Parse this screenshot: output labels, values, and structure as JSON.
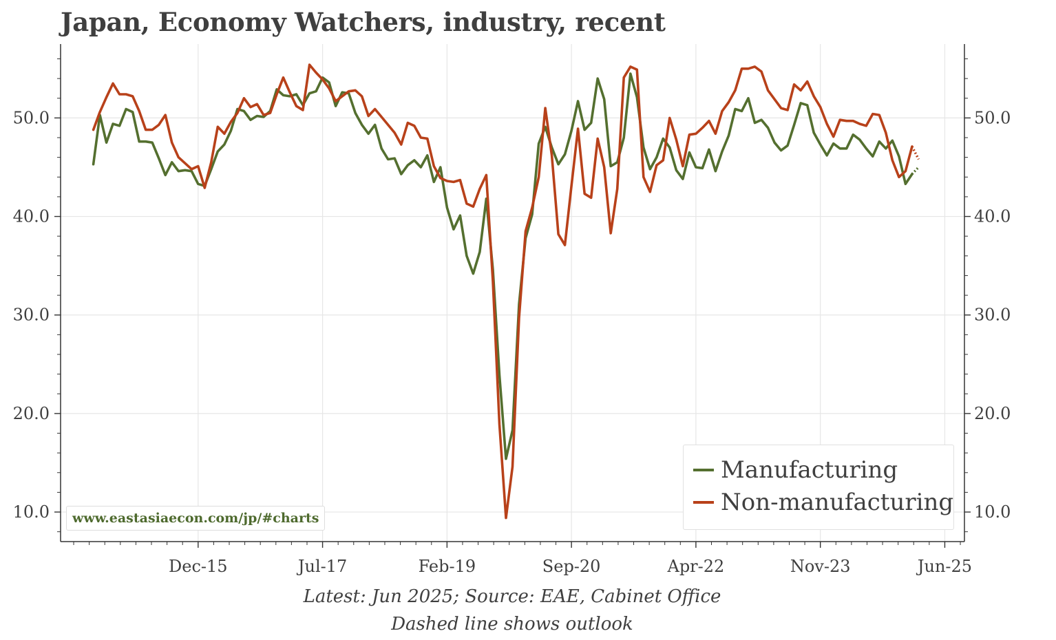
{
  "title": "Japan, Economy Watchers, industry, recent",
  "watermark": "www.eastasiaecon.com/jp/#charts",
  "footer": {
    "line1": "Latest: Jun 2025; Source: EAE, Cabinet Office",
    "line2": "Dashed line shows outlook"
  },
  "colors": {
    "manufacturing": "#546f2f",
    "non_manufacturing": "#b8411a",
    "grid": "#e6e6e6",
    "axis": "#333333"
  },
  "chart_data": {
    "type": "line",
    "title": "Japan, Economy Watchers, industry, recent",
    "xlabel": "",
    "ylabel": "",
    "ylim": [
      7.0,
      57.5
    ],
    "yticks": [
      10.0,
      20.0,
      30.0,
      40.0,
      50.0
    ],
    "ytick_labels": [
      "10.0",
      "20.0",
      "30.0",
      "40.0",
      "50.0"
    ],
    "x_start": "2014-08",
    "xlim_month_index": [
      -5,
      133
    ],
    "xtick_month_index": [
      16,
      35,
      54,
      73,
      92,
      111,
      130
    ],
    "xtick_labels": [
      "Dec-15",
      "Jul-17",
      "Feb-19",
      "Sep-20",
      "Apr-22",
      "Nov-23",
      "Jun-25"
    ],
    "legend": [
      "Manufacturing",
      "Non-manufacturing"
    ],
    "legend_position": "bottom-right",
    "series": [
      {
        "name": "Manufacturing",
        "values": [
          45.3,
          50.3,
          47.5,
          49.4,
          49.2,
          50.9,
          50.6,
          47.6,
          47.6,
          47.5,
          45.9,
          44.2,
          45.5,
          44.6,
          44.7,
          44.6,
          43.3,
          43.1,
          44.8,
          46.6,
          47.3,
          48.7,
          50.9,
          50.7,
          49.8,
          50.2,
          50.1,
          50.7,
          52.9,
          52.3,
          52.2,
          52.4,
          51.3,
          52.5,
          52.7,
          54.1,
          53.6,
          51.2,
          52.6,
          52.5,
          50.5,
          49.3,
          48.4,
          49.3,
          46.9,
          45.8,
          45.9,
          44.3,
          45.2,
          45.7,
          45.0,
          46.2,
          43.5,
          45.0,
          40.9,
          38.7,
          40.1,
          36.0,
          34.2,
          36.4,
          41.8,
          34.6,
          23.9,
          15.4,
          18.3,
          31.1,
          37.8,
          40.2,
          47.4,
          49.1,
          47.0,
          45.3,
          46.3,
          48.7,
          51.7,
          48.8,
          49.5,
          54.0,
          51.9,
          45.1,
          45.5,
          48.0,
          54.5,
          52.1,
          47.0,
          44.8,
          46.0,
          47.9,
          47.0,
          44.7,
          43.8,
          46.5,
          45.0,
          44.9,
          46.8,
          44.6,
          46.6,
          48.2,
          50.9,
          50.7,
          52.0,
          49.5,
          49.8,
          49.0,
          47.5,
          46.7,
          47.2,
          49.3,
          51.5,
          51.3,
          48.5,
          47.3,
          46.2,
          47.4,
          46.9,
          46.9,
          48.3,
          47.8,
          46.9,
          46.1,
          47.6,
          46.9,
          47.7,
          46.1,
          43.3,
          44.3
        ],
        "outlook": [
          44.3,
          45.0
        ]
      },
      {
        "name": "Non-manufacturing",
        "values": [
          48.8,
          50.6,
          52.1,
          53.5,
          52.4,
          52.4,
          52.2,
          50.7,
          48.8,
          48.8,
          49.3,
          50.3,
          47.5,
          46.0,
          45.4,
          44.8,
          45.1,
          42.9,
          45.5,
          49.1,
          48.4,
          49.6,
          50.5,
          52.0,
          51.1,
          51.4,
          50.3,
          50.5,
          52.4,
          54.1,
          52.6,
          51.2,
          50.8,
          55.4,
          54.6,
          53.9,
          53.0,
          51.7,
          52.2,
          52.7,
          52.8,
          52.2,
          50.2,
          50.9,
          50.1,
          49.3,
          48.5,
          47.3,
          49.5,
          49.2,
          48.0,
          47.9,
          45.1,
          43.9,
          43.6,
          43.5,
          43.7,
          41.3,
          41.0,
          42.8,
          44.2,
          33.4,
          18.9,
          9.4,
          14.6,
          29.7,
          38.5,
          40.9,
          44.0,
          51.0,
          46.2,
          38.2,
          37.1,
          43.1,
          48.9,
          42.3,
          41.9,
          47.9,
          45.0,
          38.3,
          42.8,
          54.1,
          55.2,
          54.9,
          44.0,
          42.5,
          45.2,
          45.7,
          50.0,
          47.8,
          45.1,
          48.3,
          48.4,
          49.0,
          49.7,
          48.4,
          50.7,
          51.6,
          52.8,
          55.0,
          55.0,
          55.2,
          54.7,
          52.8,
          51.9,
          51.0,
          50.8,
          53.4,
          52.8,
          53.7,
          52.2,
          51.1,
          49.4,
          48.1,
          49.8,
          49.7,
          49.7,
          49.4,
          49.2,
          50.4,
          50.3,
          48.5,
          45.7,
          44.0,
          44.6,
          47.1
        ],
        "outlook": [
          47.1,
          45.8
        ]
      }
    ]
  }
}
